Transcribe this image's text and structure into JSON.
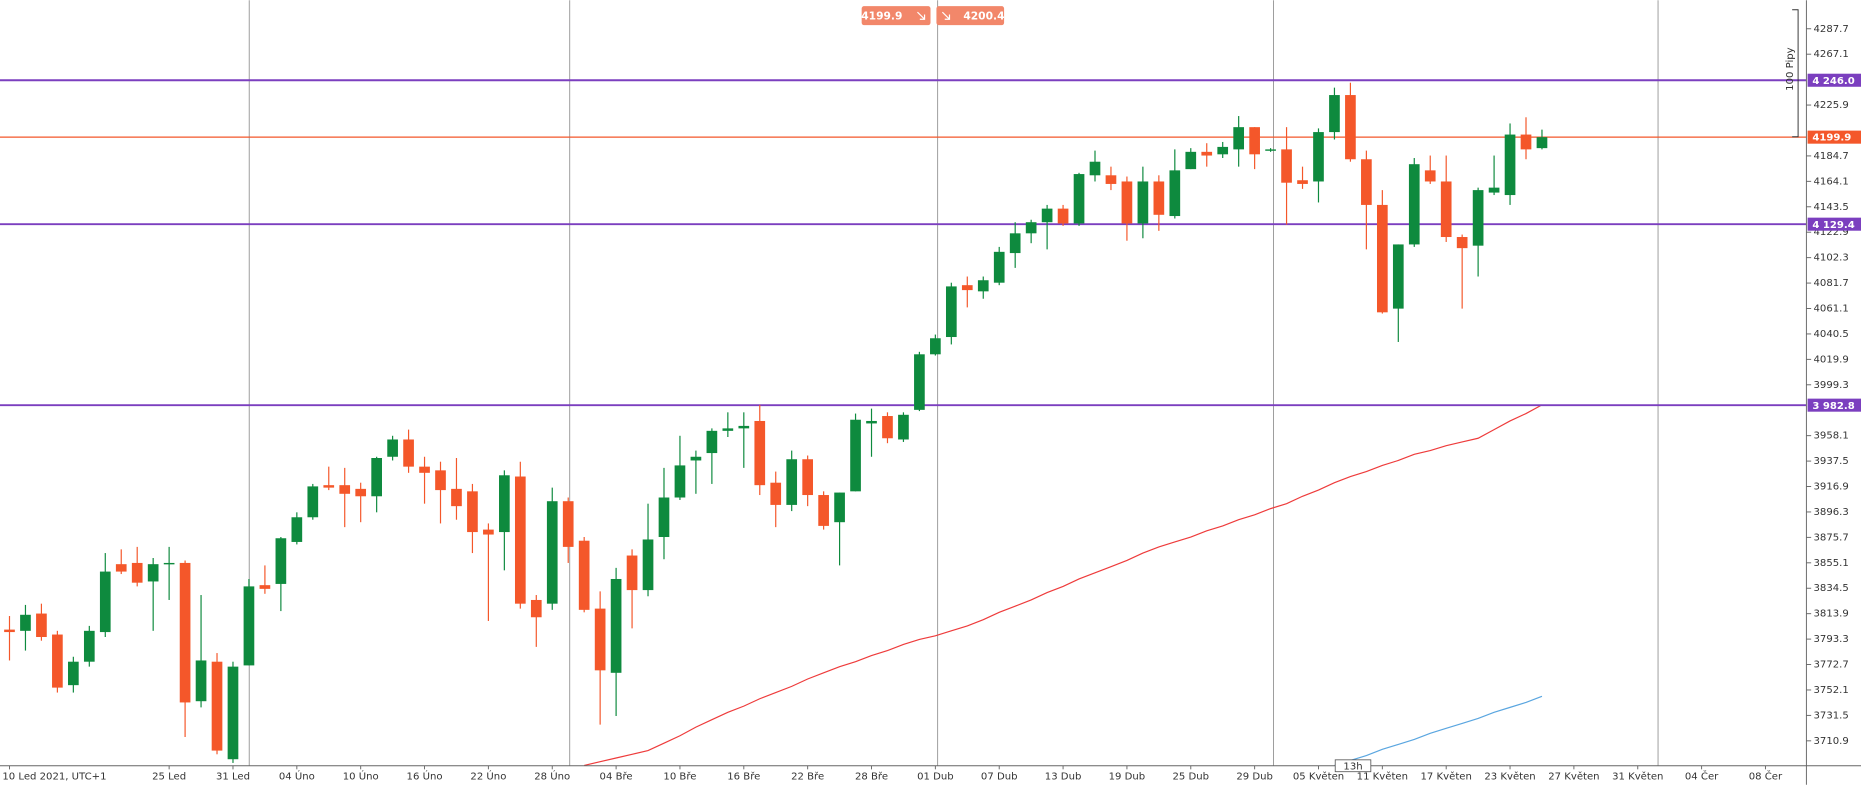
{
  "quote": {
    "sell": 4199.9,
    "buy": 4200.4
  },
  "chart_data": {
    "type": "candlestick",
    "annotation": "100 Pipy",
    "time_marker": "13h",
    "ylim": [
      3690.7,
      4310.8
    ],
    "yticks": [
      3710.9,
      3731.5,
      3752.1,
      3772.7,
      3793.3,
      3813.9,
      3834.5,
      3855.1,
      3875.7,
      3896.3,
      3916.9,
      3937.5,
      3958.1,
      3999.3,
      4019.9,
      4040.5,
      4061.1,
      4081.7,
      4102.3,
      4122.9,
      4143.5,
      4164.1,
      4184.7,
      4225.9,
      4267.1,
      4287.7
    ],
    "grid": false,
    "up_color": "#0e8a3e",
    "down_color": "#f4572a",
    "categories": [
      "10 Led 2021, UTC+1",
      null,
      null,
      null,
      null,
      null,
      null,
      null,
      null,
      null,
      "25 Led",
      null,
      null,
      null,
      "31 Led",
      null,
      null,
      null,
      "04 Úno",
      null,
      null,
      null,
      "10 Úno",
      null,
      null,
      null,
      "16 Úno",
      null,
      null,
      null,
      "22 Úno",
      null,
      null,
      null,
      "28 Úno",
      null,
      null,
      null,
      "04 Bře",
      null,
      null,
      null,
      "10 Bře",
      null,
      null,
      null,
      "16 Bře",
      null,
      null,
      null,
      "22 Bře",
      null,
      null,
      null,
      "28 Bře",
      null,
      null,
      null,
      "01 Dub",
      null,
      null,
      null,
      "07 Dub",
      null,
      null,
      null,
      "13 Dub",
      null,
      null,
      null,
      "19 Dub",
      null,
      null,
      null,
      "25 Dub",
      null,
      null,
      null,
      "29 Dub",
      null,
      null,
      null,
      "05 Květen",
      null,
      null,
      null,
      "11 Květen",
      null,
      null,
      null,
      "17 Květen",
      null,
      null,
      null,
      "23 Květen",
      null,
      null,
      null,
      "27 Květen",
      null,
      null,
      null,
      "31 Květen",
      null,
      null,
      null,
      "04 Čer",
      null,
      null,
      null,
      "08 Čer"
    ],
    "open": [
      3801,
      3800,
      3814,
      3797,
      3756,
      3775,
      3799,
      3854,
      3855,
      3840,
      3854,
      3855,
      3743,
      3775,
      3696,
      3772,
      3837,
      3838,
      3872,
      3892,
      3918,
      3918,
      3915,
      3909,
      3941,
      3955,
      3933,
      3930,
      3915,
      3913,
      3882,
      3880,
      3925,
      3825,
      3822,
      3905,
      3873,
      3818,
      3766,
      3861,
      3833,
      3876,
      3908,
      3938,
      3944,
      3962,
      3964,
      3970,
      3920,
      3902,
      3939,
      3910,
      3888,
      3913,
      3968,
      3974,
      3955,
      3979,
      4024,
      4038,
      4080,
      4075,
      4082,
      4106,
      4122,
      4131,
      4142,
      4130,
      4169,
      4169,
      4164,
      4130,
      4164,
      4136,
      4174,
      4188,
      4186,
      4190,
      4208,
      4189,
      4190,
      4165,
      4164,
      4204,
      4234,
      4182,
      4145,
      4061,
      4113,
      4173,
      4164,
      4119,
      4112,
      4155,
      4153,
      4202,
      4191,
      null,
      null,
      null,
      null,
      null,
      null,
      null,
      null,
      null,
      null,
      null,
      null,
      null,
      null
    ],
    "high": [
      3812,
      3821,
      3822,
      3800,
      3779,
      3804,
      3863,
      3866,
      3868,
      3859,
      3868,
      3857,
      3829,
      3782,
      3775,
      3842,
      3853,
      3876,
      3896,
      3919,
      3933,
      3932,
      3920,
      3941,
      3958,
      3963,
      3941,
      3937,
      3940,
      3919,
      3887,
      3930,
      3937,
      3829,
      3916,
      3908,
      3876,
      3832,
      3851,
      3866,
      3903,
      3932,
      3958,
      3946,
      3964,
      3977,
      3977,
      3983,
      3929,
      3946,
      3942,
      3913,
      3912,
      3976,
      3980,
      3977,
      3977,
      4026,
      4040,
      4082,
      4087,
      4087,
      4111,
      4131,
      4133,
      4145,
      4145,
      4171,
      4189,
      4176,
      4168,
      4176,
      4169,
      4190,
      4191,
      4195,
      4196,
      4217,
      4208,
      4191,
      4208,
      4176,
      4207,
      4240,
      4244,
      4189,
      4157,
      4113,
      4183,
      4185,
      4185,
      4121,
      4159,
      4185,
      4211,
      4216,
      4206,
      null,
      null,
      null,
      null,
      null,
      null,
      null,
      null,
      null,
      null,
      null,
      null,
      null,
      null
    ],
    "low": [
      3776,
      3784,
      3792,
      3750,
      3750,
      3771,
      3795,
      3846,
      3836,
      3800,
      3825,
      3714,
      3738,
      3700,
      3693,
      3772,
      3830,
      3816,
      3870,
      3890,
      3914,
      3884,
      3888,
      3896,
      3938,
      3928,
      3903,
      3887,
      3890,
      3863,
      3808,
      3849,
      3818,
      3787,
      3817,
      3855,
      3815,
      3724,
      3731,
      3802,
      3828,
      3858,
      3906,
      3911,
      3919,
      3957,
      3932,
      3910,
      3884,
      3897,
      3901,
      3882,
      3853,
      3913,
      3941,
      3952,
      3953,
      3978,
      4023,
      4032,
      4062,
      4069,
      4080,
      4094,
      4114,
      4109,
      4128,
      4128,
      4164,
      4157,
      4116,
      4118,
      4124,
      4134,
      4174,
      4176,
      4183,
      4176,
      4174,
      4188,
      4129,
      4158,
      4147,
      4198,
      4180,
      4109,
      4057,
      4034,
      4111,
      4162,
      4115,
      4061,
      4087,
      4153,
      4145,
      4182,
      4190,
      null,
      null,
      null,
      null,
      null,
      null,
      null,
      null,
      null,
      null,
      null,
      null,
      null,
      null
    ],
    "close": [
      3799,
      3813,
      3795,
      3754,
      3775,
      3800,
      3848,
      3848,
      3839,
      3854,
      3855,
      3742,
      3776,
      3703,
      3771,
      3836,
      3834,
      3875,
      3892,
      3917,
      3916,
      3911,
      3909,
      3940,
      3955,
      3933,
      3928,
      3914,
      3901,
      3880,
      3878,
      3926,
      3822,
      3811,
      3905,
      3868,
      3817,
      3768,
      3842,
      3833,
      3874,
      3908,
      3934,
      3941,
      3962,
      3964,
      3966,
      3918,
      3902,
      3939,
      3910,
      3885,
      3912,
      3971,
      3970,
      3956,
      3975,
      4024,
      4037,
      4079,
      4076,
      4084,
      4107,
      4122,
      4131,
      4142,
      4130,
      4170,
      4180,
      4162,
      4130,
      4164,
      4137,
      4173,
      4188,
      4185,
      4192,
      4208,
      4186,
      4190,
      4163,
      4162,
      4204,
      4234,
      4182,
      4145,
      4058,
      4113,
      4178,
      4164,
      4119,
      4110,
      4157,
      4159,
      4202,
      4190,
      4199.9,
      null,
      null,
      null,
      null,
      null,
      null,
      null,
      null,
      null,
      null,
      null,
      null,
      null,
      null
    ],
    "series": [
      {
        "color": "#ee3b3b",
        "values": [
          null,
          null,
          null,
          null,
          null,
          null,
          null,
          null,
          null,
          null,
          null,
          null,
          null,
          null,
          null,
          null,
          null,
          null,
          null,
          null,
          null,
          null,
          null,
          null,
          null,
          null,
          null,
          null,
          null,
          null,
          null,
          null,
          null,
          null,
          null,
          null,
          3691,
          3694,
          3697,
          3700,
          3703,
          3709,
          3715,
          3722,
          3728,
          3734,
          3739,
          3745,
          3750,
          3755,
          3761,
          3766,
          3771,
          3775,
          3780,
          3784,
          3789,
          3793,
          3796,
          3800,
          3804,
          3809,
          3815,
          3820,
          3825,
          3831,
          3836,
          3842,
          3847,
          3852,
          3857,
          3863,
          3868,
          3872,
          3876,
          3881,
          3885,
          3890,
          3894,
          3899,
          3903,
          3909,
          3914,
          3920,
          3925,
          3929,
          3934,
          3938,
          3943,
          3946,
          3950,
          3953,
          3956,
          3963,
          3970,
          3976,
          3983,
          null,
          null,
          null,
          null,
          null,
          null,
          null,
          null,
          null,
          null,
          null,
          null,
          null,
          null
        ]
      },
      {
        "color": "#5aa6e0",
        "values": [
          null,
          null,
          null,
          null,
          null,
          null,
          null,
          null,
          null,
          null,
          null,
          null,
          null,
          null,
          null,
          null,
          null,
          null,
          null,
          null,
          null,
          null,
          null,
          null,
          null,
          null,
          null,
          null,
          null,
          null,
          null,
          null,
          null,
          null,
          null,
          null,
          null,
          null,
          null,
          null,
          null,
          null,
          null,
          null,
          null,
          null,
          null,
          null,
          null,
          null,
          null,
          null,
          null,
          null,
          null,
          null,
          null,
          null,
          null,
          null,
          null,
          null,
          null,
          null,
          null,
          null,
          null,
          null,
          null,
          null,
          null,
          null,
          null,
          null,
          null,
          null,
          null,
          null,
          null,
          null,
          null,
          null,
          null,
          3691,
          3695,
          3699,
          3704,
          3708,
          3712,
          3717,
          3721,
          3725,
          3729,
          3734,
          3738,
          3742,
          3747,
          null,
          null,
          null,
          null,
          null,
          null,
          null,
          null,
          null,
          null,
          null,
          null,
          null,
          null
        ]
      }
    ],
    "levels": [
      {
        "value": 4246.0,
        "label": "4 246.0",
        "color": "#7b3fbf"
      },
      {
        "value": 4199.9,
        "color": "#f4572a"
      },
      {
        "value": 4129.4,
        "label": "4 129.4",
        "color": "#7b3fbf"
      },
      {
        "value": 3982.8,
        "label": "3 982.8",
        "color": "#7b3fbf"
      }
    ]
  }
}
